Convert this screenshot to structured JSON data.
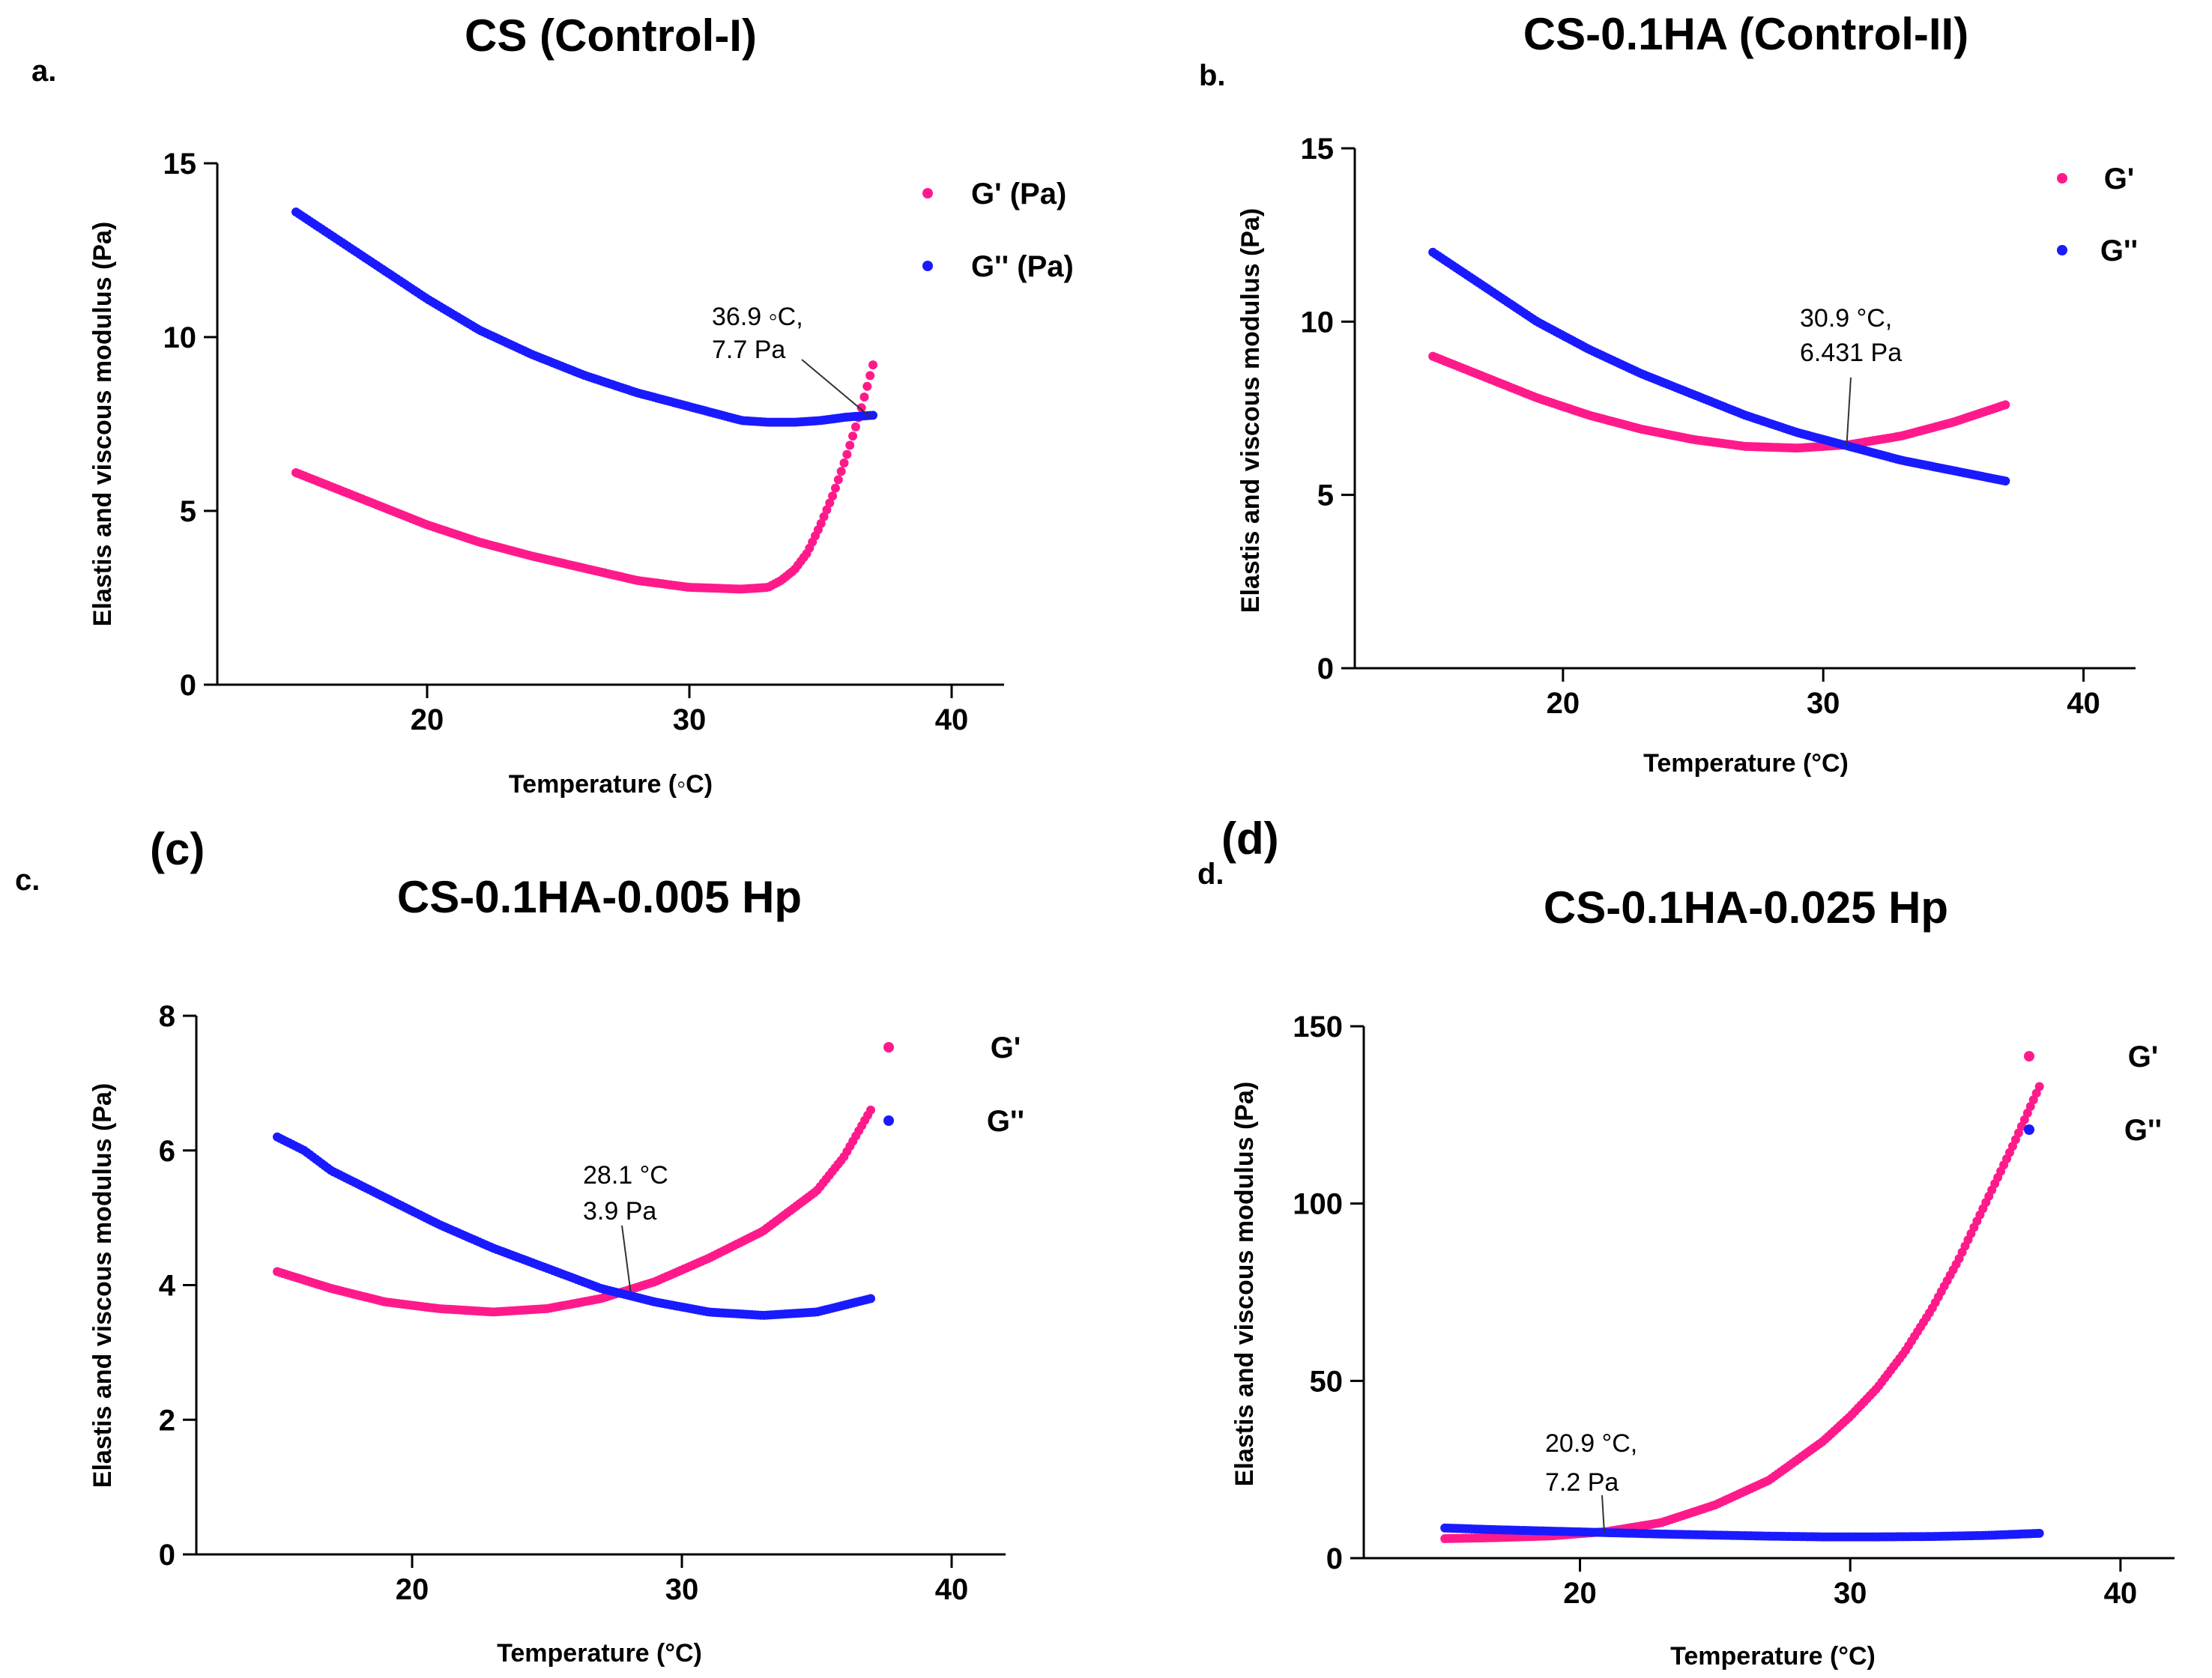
{
  "colors": {
    "gp": "#ff1a8c",
    "gpp": "#1a1aff",
    "axis": "#000000"
  },
  "chart_data": [
    {
      "type": "scatter",
      "panel": "a.",
      "title": "CS (Control-I)",
      "xlabel": "Temperature (◦C)",
      "ylabel": "Elastis and viscous modulus (Pa)",
      "xlim": [
        12,
        42
      ],
      "ylim": [
        0,
        15
      ],
      "xticks": [
        20,
        30,
        40
      ],
      "yticks": [
        0,
        5,
        10,
        15
      ],
      "legend": [
        "G' (Pa)",
        "G'' (Pa)"
      ],
      "annotation": {
        "lines": [
          "36.9 ◦C,",
          "7.7 Pa"
        ],
        "x": 36.9,
        "y": 7.7
      },
      "series": [
        {
          "name": "G' (Pa)",
          "x": [
            15,
            17,
            20,
            22,
            24,
            26,
            28,
            30,
            32,
            33,
            33.5,
            34,
            34.5,
            35,
            35.5,
            36,
            36.5,
            37
          ],
          "y": [
            6.1,
            5.5,
            4.6,
            4.1,
            3.7,
            3.35,
            3.0,
            2.8,
            2.75,
            2.8,
            3.0,
            3.3,
            3.8,
            4.6,
            5.5,
            6.6,
            7.8,
            9.2
          ]
        },
        {
          "name": "G'' (Pa)",
          "x": [
            15,
            17,
            20,
            22,
            24,
            26,
            28,
            30,
            31,
            32,
            33,
            34,
            35,
            36,
            37
          ],
          "y": [
            13.6,
            12.6,
            11.1,
            10.2,
            9.5,
            8.9,
            8.4,
            8.0,
            7.8,
            7.6,
            7.55,
            7.55,
            7.6,
            7.7,
            7.75
          ]
        }
      ]
    },
    {
      "type": "scatter",
      "panel": "b.",
      "title": "CS-0.1HA (Control-II)",
      "xlabel": "Temperature (°C)",
      "ylabel": "Elastis and viscous modulus (Pa)",
      "xlim": [
        12,
        42
      ],
      "ylim": [
        0,
        15
      ],
      "xticks": [
        20,
        30,
        40
      ],
      "yticks": [
        0,
        5,
        10,
        15
      ],
      "legend": [
        "G'",
        "G''"
      ],
      "annotation": {
        "lines": [
          "30.9 °C,",
          "6.431 Pa"
        ],
        "x": 30.9,
        "y": 6.431
      },
      "series": [
        {
          "name": "G'",
          "x": [
            15,
            17,
            19,
            21,
            23,
            25,
            27,
            29,
            31,
            33,
            35,
            37
          ],
          "y": [
            9.0,
            8.4,
            7.8,
            7.3,
            6.9,
            6.6,
            6.4,
            6.35,
            6.45,
            6.7,
            7.1,
            7.6
          ]
        },
        {
          "name": "G''",
          "x": [
            15,
            17,
            19,
            21,
            23,
            25,
            27,
            29,
            31,
            33,
            35,
            37
          ],
          "y": [
            12.0,
            11.0,
            10.0,
            9.2,
            8.5,
            7.9,
            7.3,
            6.8,
            6.4,
            6.0,
            5.7,
            5.4
          ]
        }
      ]
    },
    {
      "type": "scatter",
      "panel": "c.",
      "big_label": "(c)",
      "title": "CS-0.1HA-0.005 Hp",
      "xlabel": "Temperature (°C)",
      "ylabel": "Elastis and viscous modulus (Pa)",
      "xlim": [
        12,
        42
      ],
      "ylim": [
        0,
        8
      ],
      "xticks": [
        20,
        30,
        40
      ],
      "yticks": [
        0,
        2,
        4,
        6,
        8
      ],
      "legend": [
        "G'",
        "G''"
      ],
      "annotation": {
        "lines": [
          "28.1 °C",
          "3.9 Pa"
        ],
        "x": 28.1,
        "y": 3.9
      },
      "series": [
        {
          "name": "G'",
          "x": [
            15,
            17,
            19,
            21,
            23,
            25,
            27,
            29,
            31,
            33,
            35,
            36,
            37
          ],
          "y": [
            4.2,
            3.95,
            3.75,
            3.65,
            3.6,
            3.65,
            3.8,
            4.05,
            4.4,
            4.8,
            5.4,
            5.9,
            6.6
          ]
        },
        {
          "name": "G''",
          "x": [
            15,
            16,
            17,
            19,
            21,
            23,
            25,
            27,
            29,
            31,
            33,
            35,
            37
          ],
          "y": [
            6.2,
            6.0,
            5.7,
            5.3,
            4.9,
            4.55,
            4.25,
            3.95,
            3.75,
            3.6,
            3.55,
            3.6,
            3.8
          ]
        }
      ]
    },
    {
      "type": "scatter",
      "panel": "d.",
      "big_label": "(d)",
      "title": "CS-0.1HA-0.025 Hp",
      "xlabel": "Temperature (°C)",
      "ylabel": "Elastis and viscous modulus (Pa)",
      "xlim": [
        12,
        42
      ],
      "ylim": [
        0,
        150
      ],
      "xticks": [
        20,
        30,
        40
      ],
      "yticks": [
        0,
        50,
        100,
        150
      ],
      "legend": [
        "G'",
        "G''"
      ],
      "annotation": {
        "lines": [
          "20.9  °C,",
          "7.2 Pa"
        ],
        "x": 20.9,
        "y": 7.2
      },
      "series": [
        {
          "name": "G'",
          "x": [
            15,
            17,
            19,
            21,
            23,
            25,
            27,
            29,
            30,
            31,
            32,
            33,
            34,
            35,
            36,
            37
          ],
          "y": [
            5.5,
            5.8,
            6.3,
            7.5,
            10,
            15,
            22,
            33,
            40,
            48,
            58,
            70,
            84,
            100,
            116,
            133
          ]
        },
        {
          "name": "G''",
          "x": [
            15,
            17,
            19,
            21,
            23,
            25,
            27,
            29,
            31,
            33,
            35,
            37
          ],
          "y": [
            8.5,
            8.0,
            7.6,
            7.2,
            6.8,
            6.5,
            6.2,
            6.0,
            6.0,
            6.1,
            6.4,
            7.0
          ]
        }
      ]
    }
  ]
}
